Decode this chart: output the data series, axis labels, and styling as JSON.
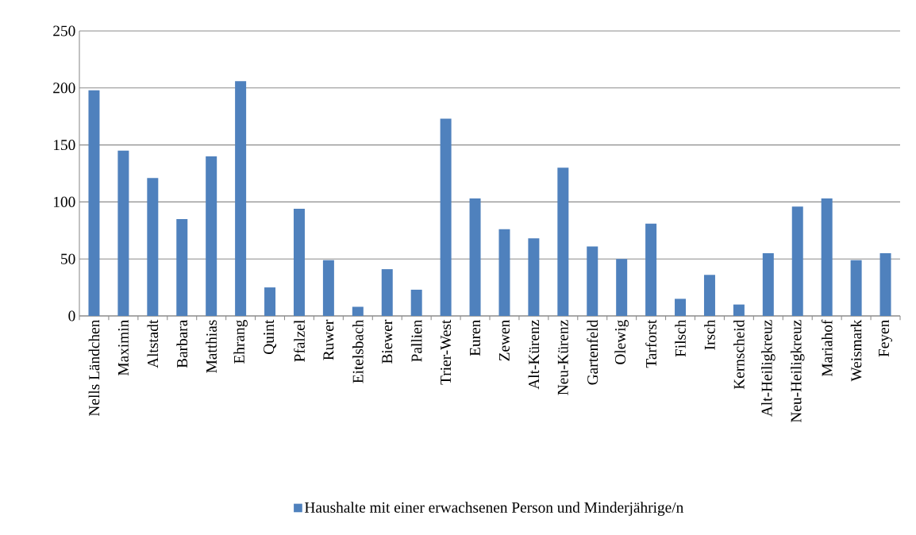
{
  "chart_data": {
    "type": "bar",
    "categories": [
      "Nells Ländchen",
      "Maximin",
      "Altstadt",
      "Barbara",
      "Matthias",
      "Ehrang",
      "Quint",
      "Pfalzel",
      "Ruwer",
      "Eitelsbach",
      "Biewer",
      "Pallien",
      "Trier-West",
      "Euren",
      "Zewen",
      "Alt-Kürenz",
      "Neu-Kürenz",
      "Gartenfeld",
      "Olewig",
      "Tarforst",
      "Filsch",
      "Irsch",
      "Kernscheid",
      "Alt-Heiligkreuz",
      "Neu-Heiligkreuz",
      "Mariahof",
      "Weismark",
      "Feyen"
    ],
    "series": [
      {
        "name": "Haushalte mit einer erwachsenen Person und Minderjährige/n",
        "color": "#4f81bd",
        "values": [
          198,
          145,
          121,
          85,
          140,
          206,
          25,
          94,
          49,
          8,
          41,
          23,
          173,
          103,
          76,
          68,
          130,
          61,
          50,
          81,
          15,
          36,
          10,
          55,
          96,
          103,
          49,
          55
        ]
      }
    ],
    "ylim": [
      0,
      250
    ],
    "yticks": [
      0,
      50,
      100,
      150,
      200,
      250
    ],
    "grid": "y",
    "legend": "bottom"
  }
}
